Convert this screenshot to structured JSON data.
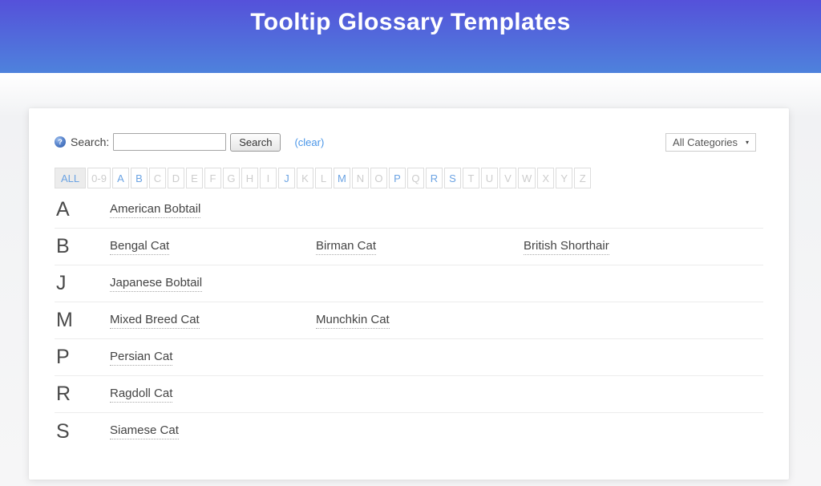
{
  "header": {
    "title": "Tooltip Glossary Templates"
  },
  "search": {
    "help_icon": "?",
    "label": "Search:",
    "input_value": "",
    "button_label": "Search",
    "clear_label": "(clear)"
  },
  "category_filter": {
    "selected": "All Categories",
    "caret": "▾"
  },
  "alphabet_bar": {
    "items": [
      {
        "label": "ALL",
        "state": "selected"
      },
      {
        "label": "0-9",
        "state": "disabled"
      },
      {
        "label": "A",
        "state": "enabled"
      },
      {
        "label": "B",
        "state": "enabled"
      },
      {
        "label": "C",
        "state": "disabled"
      },
      {
        "label": "D",
        "state": "disabled"
      },
      {
        "label": "E",
        "state": "disabled"
      },
      {
        "label": "F",
        "state": "disabled"
      },
      {
        "label": "G",
        "state": "disabled"
      },
      {
        "label": "H",
        "state": "disabled"
      },
      {
        "label": "I",
        "state": "disabled"
      },
      {
        "label": "J",
        "state": "enabled"
      },
      {
        "label": "K",
        "state": "disabled"
      },
      {
        "label": "L",
        "state": "disabled"
      },
      {
        "label": "M",
        "state": "enabled"
      },
      {
        "label": "N",
        "state": "disabled"
      },
      {
        "label": "O",
        "state": "disabled"
      },
      {
        "label": "P",
        "state": "enabled"
      },
      {
        "label": "Q",
        "state": "disabled"
      },
      {
        "label": "R",
        "state": "enabled"
      },
      {
        "label": "S",
        "state": "enabled"
      },
      {
        "label": "T",
        "state": "disabled"
      },
      {
        "label": "U",
        "state": "disabled"
      },
      {
        "label": "V",
        "state": "disabled"
      },
      {
        "label": "W",
        "state": "disabled"
      },
      {
        "label": "X",
        "state": "disabled"
      },
      {
        "label": "Y",
        "state": "disabled"
      },
      {
        "label": "Z",
        "state": "disabled"
      }
    ]
  },
  "glossary": {
    "groups": [
      {
        "letter": "A",
        "terms": [
          "American Bobtail"
        ]
      },
      {
        "letter": "B",
        "terms": [
          "Bengal Cat",
          "Birman Cat",
          "British Shorthair"
        ]
      },
      {
        "letter": "J",
        "terms": [
          "Japanese Bobtail"
        ]
      },
      {
        "letter": "M",
        "terms": [
          "Mixed Breed Cat",
          "Munchkin Cat"
        ]
      },
      {
        "letter": "P",
        "terms": [
          "Persian Cat"
        ]
      },
      {
        "letter": "R",
        "terms": [
          "Ragdoll Cat"
        ]
      },
      {
        "letter": "S",
        "terms": [
          "Siamese Cat"
        ]
      }
    ]
  },
  "colors": {
    "header_gradient_top": "#5551da",
    "header_gradient_bottom": "#4e82dc",
    "link_blue": "#4a96e8",
    "letter_active_blue": "#6ba3e3",
    "letter_disabled_gray": "#cccccc",
    "term_text": "#444444",
    "row_border": "#ececec"
  }
}
